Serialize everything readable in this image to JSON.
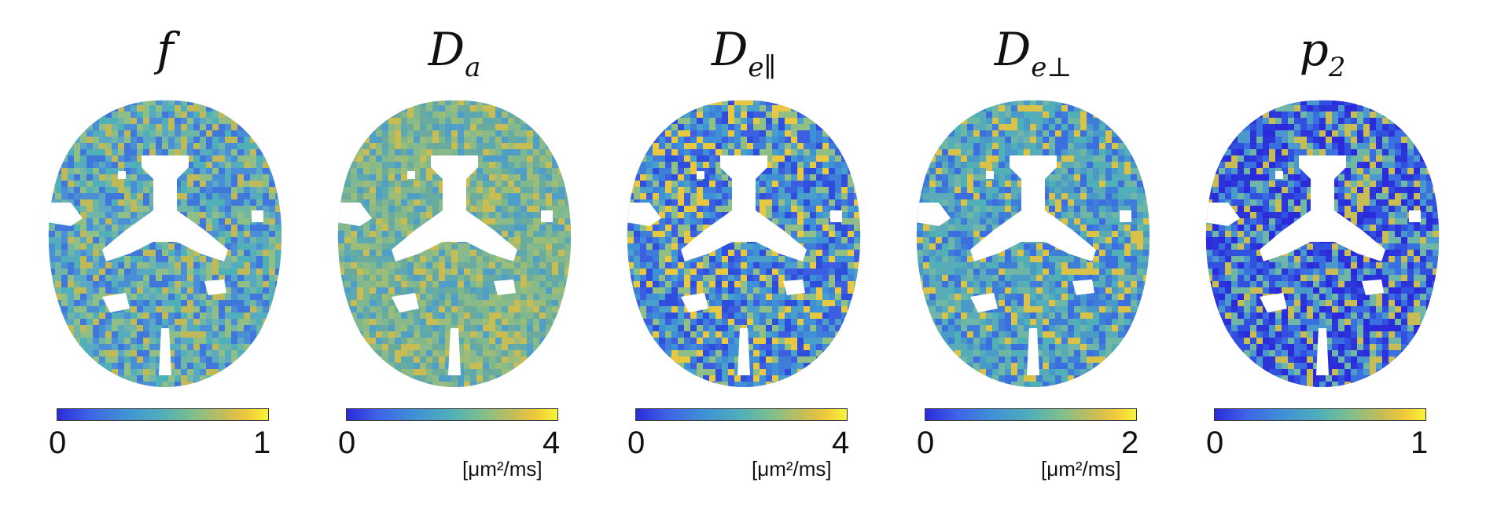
{
  "panels": [
    {
      "title": "f",
      "sub": "",
      "min": "0",
      "max": "1",
      "unit": ""
    },
    {
      "title": "D",
      "sub": "a",
      "min": "0",
      "max": "4",
      "unit": "[μm²/ms]"
    },
    {
      "title": "D",
      "sub": "e∥",
      "min": "0",
      "max": "4",
      "unit": "[μm²/ms]"
    },
    {
      "title": "D",
      "sub": "e⊥",
      "min": "0",
      "max": "2",
      "unit": "[μm²/ms]"
    },
    {
      "title": "p",
      "sub": "2",
      "min": "0",
      "max": "1",
      "unit": ""
    }
  ],
  "colors": {
    "low": "#2b2bdc",
    "mid": "#4fb0b8",
    "high": "#f8f43a"
  }
}
